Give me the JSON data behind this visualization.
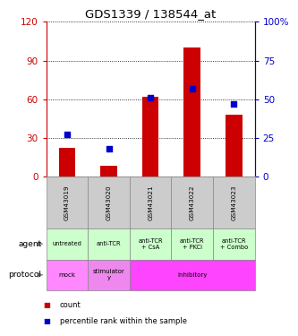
{
  "title": "GDS1339 / 138544_at",
  "samples": [
    "GSM43019",
    "GSM43020",
    "GSM43021",
    "GSM43022",
    "GSM43023"
  ],
  "counts": [
    22,
    8,
    62,
    100,
    48
  ],
  "percentile_ranks": [
    27,
    18,
    51,
    57,
    47
  ],
  "left_yaxis": {
    "min": 0,
    "max": 120,
    "ticks": [
      0,
      30,
      60,
      90,
      120
    ],
    "color": "#cc0000"
  },
  "right_yaxis": {
    "min": 0,
    "max": 100,
    "ticks": [
      0,
      25,
      50,
      75,
      100
    ],
    "color": "#0000cc"
  },
  "bar_color": "#cc0000",
  "dot_color": "#0000cc",
  "agent_labels": [
    "untreated",
    "anti-TCR",
    "anti-TCR\n+ CsA",
    "anti-TCR\n+ PKCi",
    "anti-TCR\n+ Combo"
  ],
  "agent_bg": "#ccffcc",
  "protocol_items": [
    {
      "label": "mock",
      "start": 0,
      "end": 0,
      "color": "#ff88ff"
    },
    {
      "label": "stimulator\ny",
      "start": 1,
      "end": 1,
      "color": "#ee88ee"
    },
    {
      "label": "inhibitory",
      "start": 2,
      "end": 4,
      "color": "#ff44ff"
    }
  ],
  "sample_box_color": "#cccccc",
  "legend_count_color": "#cc0000",
  "legend_pct_color": "#0000cc",
  "legend_count_label": "count",
  "legend_pct_label": "percentile rank within the sample"
}
